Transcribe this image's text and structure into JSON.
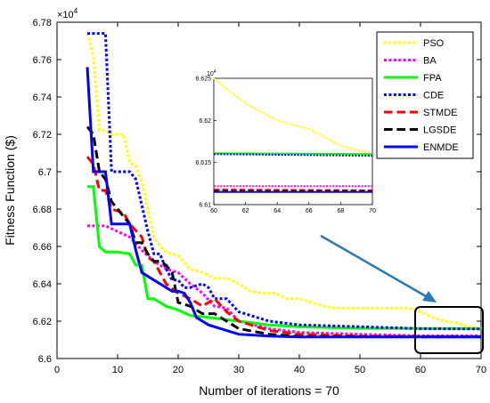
{
  "chart_data": {
    "type": "line",
    "xlabel": "Number of iterations = 70",
    "ylabel": "Fitness Function ($)",
    "y_multiplier_label": "×10",
    "y_multiplier_exp": "4",
    "xlim": [
      0,
      70
    ],
    "ylim": [
      6.6,
      6.78
    ],
    "x_ticks": [
      "0",
      "10",
      "20",
      "30",
      "40",
      "50",
      "60",
      "70"
    ],
    "y_ticks": [
      "6.6",
      "6.62",
      "6.64",
      "6.66",
      "6.68",
      "6.7",
      "6.72",
      "6.74",
      "6.76",
      "6.78"
    ],
    "grid": false,
    "legend_position": "top-right",
    "series": [
      {
        "name": "PSO",
        "color": "#ffff00",
        "dash": "dotted",
        "points": [
          [
            5,
            6.774
          ],
          [
            6,
            6.762
          ],
          [
            7,
            6.722
          ],
          [
            8,
            6.722
          ],
          [
            9,
            6.72
          ],
          [
            10,
            6.72
          ],
          [
            11,
            6.72
          ],
          [
            12,
            6.705
          ],
          [
            13,
            6.703
          ],
          [
            14,
            6.695
          ],
          [
            15,
            6.68
          ],
          [
            16,
            6.665
          ],
          [
            17,
            6.66
          ],
          [
            18,
            6.657
          ],
          [
            20,
            6.655
          ],
          [
            22,
            6.648
          ],
          [
            24,
            6.646
          ],
          [
            26,
            6.643
          ],
          [
            28,
            6.643
          ],
          [
            30,
            6.64
          ],
          [
            32,
            6.636
          ],
          [
            34,
            6.635
          ],
          [
            36,
            6.635
          ],
          [
            38,
            6.632
          ],
          [
            40,
            6.632
          ],
          [
            42,
            6.63
          ],
          [
            44,
            6.628
          ],
          [
            46,
            6.627
          ],
          [
            50,
            6.627
          ],
          [
            55,
            6.627
          ],
          [
            58,
            6.627
          ],
          [
            60,
            6.625
          ],
          [
            62,
            6.622
          ],
          [
            64,
            6.62
          ],
          [
            66,
            6.619
          ],
          [
            68,
            6.617
          ],
          [
            70,
            6.616
          ]
        ]
      },
      {
        "name": "BA",
        "color": "#ff00ff",
        "dash": "dotted",
        "points": [
          [
            5,
            6.671
          ],
          [
            6,
            6.671
          ],
          [
            8,
            6.671
          ],
          [
            10,
            6.668
          ],
          [
            12,
            6.665
          ],
          [
            14,
            6.658
          ],
          [
            16,
            6.652
          ],
          [
            18,
            6.648
          ],
          [
            20,
            6.646
          ],
          [
            22,
            6.64
          ],
          [
            24,
            6.635
          ],
          [
            26,
            6.628
          ],
          [
            28,
            6.627
          ],
          [
            30,
            6.62
          ],
          [
            35,
            6.616
          ],
          [
            40,
            6.614
          ],
          [
            50,
            6.613
          ],
          [
            60,
            6.6122
          ],
          [
            70,
            6.6122
          ]
        ]
      },
      {
        "name": "FPA",
        "color": "#00ff00",
        "dash": "solid",
        "points": [
          [
            5,
            6.692
          ],
          [
            6,
            6.692
          ],
          [
            7,
            6.66
          ],
          [
            8,
            6.657
          ],
          [
            10,
            6.657
          ],
          [
            12,
            6.656
          ],
          [
            13,
            6.65
          ],
          [
            14,
            6.65
          ],
          [
            15,
            6.632
          ],
          [
            16,
            6.632
          ],
          [
            17,
            6.63
          ],
          [
            18,
            6.628
          ],
          [
            20,
            6.626
          ],
          [
            22,
            6.623
          ],
          [
            25,
            6.622
          ],
          [
            30,
            6.62
          ],
          [
            35,
            6.618
          ],
          [
            40,
            6.617
          ],
          [
            50,
            6.6162
          ],
          [
            60,
            6.6161
          ],
          [
            70,
            6.616
          ]
        ]
      },
      {
        "name": "CDE",
        "color": "#0000ff",
        "dash": "dotted",
        "points": [
          [
            5,
            6.774
          ],
          [
            8,
            6.774
          ],
          [
            9,
            6.7
          ],
          [
            12,
            6.7
          ],
          [
            13,
            6.696
          ],
          [
            14,
            6.682
          ],
          [
            15,
            6.668
          ],
          [
            16,
            6.656
          ],
          [
            17,
            6.656
          ],
          [
            18,
            6.648
          ],
          [
            19,
            6.642
          ],
          [
            20,
            6.642
          ],
          [
            21,
            6.638
          ],
          [
            22,
            6.638
          ],
          [
            24,
            6.64
          ],
          [
            25,
            6.638
          ],
          [
            26,
            6.632
          ],
          [
            28,
            6.632
          ],
          [
            30,
            6.625
          ],
          [
            35,
            6.62
          ],
          [
            40,
            6.618
          ],
          [
            50,
            6.617
          ],
          [
            60,
            6.616
          ],
          [
            70,
            6.6158
          ]
        ]
      },
      {
        "name": "STMDE",
        "color": "#ff0000",
        "dash": "dashed",
        "points": [
          [
            5,
            6.708
          ],
          [
            6,
            6.704
          ],
          [
            7,
            6.69
          ],
          [
            8,
            6.69
          ],
          [
            9,
            6.68
          ],
          [
            11,
            6.678
          ],
          [
            12,
            6.672
          ],
          [
            14,
            6.665
          ],
          [
            15,
            6.654
          ],
          [
            16,
            6.652
          ],
          [
            17,
            6.646
          ],
          [
            18,
            6.64
          ],
          [
            20,
            6.635
          ],
          [
            22,
            6.632
          ],
          [
            24,
            6.628
          ],
          [
            26,
            6.632
          ],
          [
            28,
            6.625
          ],
          [
            30,
            6.62
          ],
          [
            35,
            6.615
          ],
          [
            40,
            6.613
          ],
          [
            50,
            6.612
          ],
          [
            60,
            6.6118
          ],
          [
            70,
            6.6117
          ]
        ]
      },
      {
        "name": "LGSDE",
        "color": "#000000",
        "dash": "dashed",
        "points": [
          [
            5,
            6.724
          ],
          [
            6,
            6.72
          ],
          [
            7,
            6.7
          ],
          [
            8,
            6.696
          ],
          [
            9,
            6.684
          ],
          [
            10,
            6.68
          ],
          [
            12,
            6.672
          ],
          [
            13,
            6.662
          ],
          [
            14,
            6.662
          ],
          [
            15,
            6.656
          ],
          [
            16,
            6.652
          ],
          [
            17,
            6.652
          ],
          [
            18,
            6.65
          ],
          [
            19,
            6.646
          ],
          [
            20,
            6.63
          ],
          [
            22,
            6.628
          ],
          [
            24,
            6.624
          ],
          [
            26,
            6.624
          ],
          [
            28,
            6.62
          ],
          [
            30,
            6.616
          ],
          [
            35,
            6.613
          ],
          [
            40,
            6.6118
          ],
          [
            50,
            6.6117
          ],
          [
            60,
            6.6116
          ],
          [
            70,
            6.6116
          ]
        ]
      },
      {
        "name": "ENMDE",
        "color": "#0000ff",
        "dash": "solid",
        "points": [
          [
            5,
            6.756
          ],
          [
            6,
            6.7
          ],
          [
            8,
            6.7
          ],
          [
            9,
            6.672
          ],
          [
            12,
            6.672
          ],
          [
            13,
            6.658
          ],
          [
            14,
            6.646
          ],
          [
            16,
            6.642
          ],
          [
            17,
            6.64
          ],
          [
            18,
            6.638
          ],
          [
            19,
            6.636
          ],
          [
            20,
            6.636
          ],
          [
            21,
            6.635
          ],
          [
            22,
            6.63
          ],
          [
            23,
            6.622
          ],
          [
            25,
            6.618
          ],
          [
            28,
            6.615
          ],
          [
            30,
            6.613
          ],
          [
            35,
            6.612
          ],
          [
            40,
            6.6115
          ],
          [
            50,
            6.6115
          ],
          [
            60,
            6.6115
          ],
          [
            70,
            6.6115
          ]
        ]
      }
    ],
    "inset": {
      "xlim": [
        60,
        70
      ],
      "ylim": [
        6.61,
        6.625
      ],
      "x_ticks": [
        "60",
        "62",
        "64",
        "66",
        "68",
        "70"
      ],
      "y_ticks": [
        "6.61",
        "6.615",
        "6.62",
        "6.625"
      ],
      "y_multiplier_label": "10",
      "y_multiplier_exp": "4"
    }
  }
}
